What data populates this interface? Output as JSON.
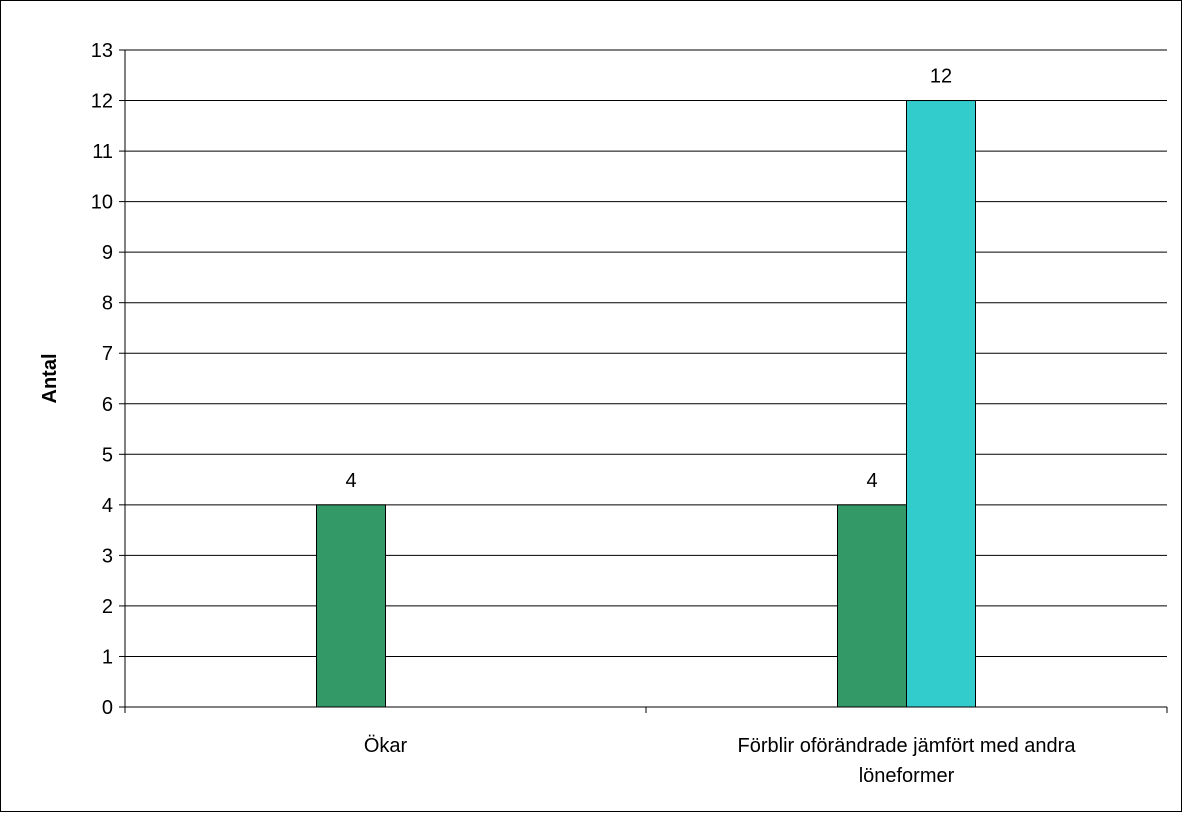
{
  "chart_data": {
    "type": "bar",
    "title": "",
    "xlabel": "",
    "ylabel": "Antal",
    "ylim": [
      0,
      13
    ],
    "yticks": [
      0,
      1,
      2,
      3,
      4,
      5,
      6,
      7,
      8,
      9,
      10,
      11,
      12,
      13
    ],
    "grid": true,
    "legend": "none",
    "categories": [
      [
        "Ökar"
      ],
      [
        "Förblir oförändrade jämfört med andra",
        "löneformer"
      ]
    ],
    "series": [
      {
        "color": "#339966",
        "values": [
          4,
          4
        ]
      },
      {
        "color": "#33CCCC",
        "values": [
          null,
          12
        ]
      }
    ],
    "data_labels": true
  }
}
